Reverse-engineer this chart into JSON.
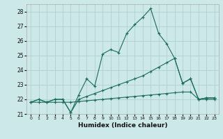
{
  "xlabel": "Humidex (Indice chaleur)",
  "background_color": "#cce8e8",
  "grid_color": "#aacccc",
  "line_color": "#1a6b5a",
  "ylim": [
    21,
    28.5
  ],
  "xlim": [
    -0.5,
    23.5
  ],
  "yticks": [
    21,
    22,
    23,
    24,
    25,
    26,
    27,
    28
  ],
  "xticks": [
    0,
    1,
    2,
    3,
    4,
    5,
    6,
    7,
    8,
    9,
    10,
    11,
    12,
    13,
    14,
    15,
    16,
    17,
    18,
    19,
    20,
    21,
    22,
    23
  ],
  "series": [
    [
      21.8,
      22.0,
      21.8,
      22.0,
      22.0,
      21.1,
      22.3,
      23.4,
      22.9,
      25.1,
      25.4,
      25.2,
      26.5,
      27.1,
      27.6,
      28.2,
      26.5,
      25.8,
      24.8,
      23.1,
      23.4,
      22.0,
      22.1,
      22.1
    ],
    [
      21.8,
      22.0,
      21.8,
      22.0,
      22.0,
      21.1,
      22.0,
      22.2,
      22.4,
      22.6,
      22.8,
      23.0,
      23.2,
      23.4,
      23.6,
      23.9,
      24.2,
      24.5,
      24.8,
      23.1,
      23.4,
      22.0,
      22.1,
      22.1
    ],
    [
      21.8,
      21.8,
      21.8,
      21.8,
      21.8,
      21.8,
      21.85,
      21.9,
      21.95,
      22.0,
      22.05,
      22.1,
      22.15,
      22.2,
      22.25,
      22.3,
      22.35,
      22.4,
      22.45,
      22.5,
      22.5,
      22.0,
      22.0,
      22.0
    ]
  ]
}
